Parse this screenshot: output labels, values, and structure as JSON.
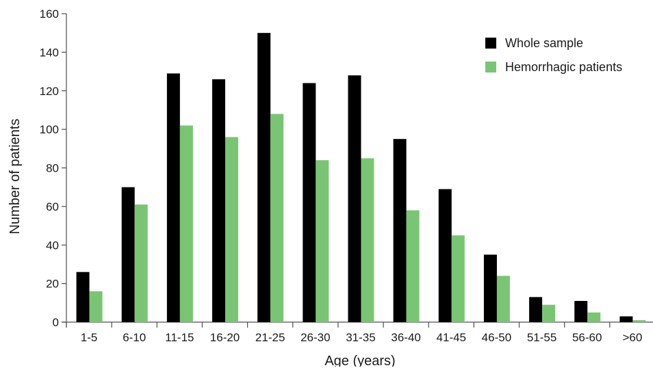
{
  "chart_data": {
    "type": "bar",
    "title": "",
    "xlabel": "Age (years)",
    "ylabel": "Number of patients",
    "ylim": [
      0,
      160
    ],
    "yticks": [
      "0",
      "20",
      "40",
      "60",
      "80",
      "100",
      "120",
      "140",
      "160"
    ],
    "categories": [
      "1-5",
      "6-10",
      "11-15",
      "16-20",
      "21-25",
      "26-30",
      "31-35",
      "36-40",
      "41-45",
      "46-50",
      "51-55",
      "56-60",
      ">60"
    ],
    "series": [
      {
        "name": "Whole sample",
        "color": "#000000",
        "values": [
          26,
          70,
          129,
          126,
          150,
          124,
          128,
          95,
          69,
          35,
          13,
          11,
          3
        ]
      },
      {
        "name": "Hemorrhagic patients",
        "color": "#7ac574",
        "values": [
          16,
          61,
          102,
          96,
          108,
          84,
          85,
          58,
          45,
          24,
          9,
          5,
          1
        ]
      }
    ],
    "grid": false,
    "legend_position": "top-right"
  }
}
